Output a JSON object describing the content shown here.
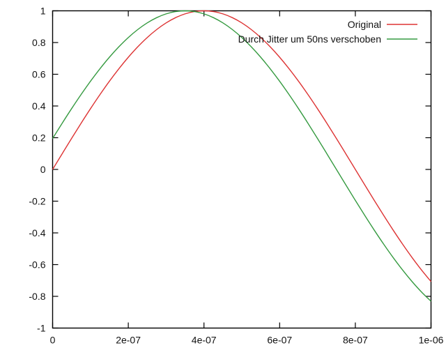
{
  "chart_data": {
    "type": "line",
    "title": "",
    "xlabel": "",
    "ylabel": "",
    "grid": false,
    "background_color": "#ffffff",
    "axis_color": "#000000",
    "legend_position": "top-right-inside",
    "x_range": [
      0,
      1e-06
    ],
    "y_range": [
      -1,
      1
    ],
    "x_ticks": {
      "values": [
        0,
        2e-07,
        4e-07,
        6e-07,
        8e-07,
        1e-06
      ],
      "labels": [
        "0",
        "2e-07",
        "4e-07",
        "6e-07",
        "8e-07",
        "1e-06"
      ]
    },
    "y_ticks": {
      "values": [
        -1,
        -0.8,
        -0.6,
        -0.4,
        -0.2,
        0,
        0.2,
        0.4,
        0.6,
        0.8,
        1
      ],
      "labels": [
        "-1",
        "-0.8",
        "-0.6",
        "-0.4",
        "-0.2",
        "0",
        "0.2",
        "0.4",
        "0.6",
        "0.8",
        "1"
      ]
    },
    "x_sample_start": 0,
    "x_sample_step": 2.5e-08,
    "series": [
      {
        "name": "Original",
        "color": "#dd3333",
        "values": [
          0.0,
          0.098,
          0.1951,
          0.2903,
          0.3827,
          0.4714,
          0.5556,
          0.6344,
          0.7071,
          0.773,
          0.8315,
          0.8819,
          0.9239,
          0.9569,
          0.9808,
          0.9952,
          1.0,
          0.9952,
          0.9808,
          0.9569,
          0.9239,
          0.8819,
          0.8315,
          0.773,
          0.7071,
          0.6344,
          0.5556,
          0.4714,
          0.3827,
          0.2903,
          0.1951,
          0.098,
          0.0,
          -0.098,
          -0.1951,
          -0.2903,
          -0.3827,
          -0.4714,
          -0.5556,
          -0.6344,
          -0.7071
        ]
      },
      {
        "name": "Durch Jitter um 50ns verschoben",
        "color": "#359a40",
        "values": [
          0.1951,
          0.2903,
          0.3827,
          0.4714,
          0.5556,
          0.6344,
          0.7071,
          0.773,
          0.8315,
          0.8819,
          0.9239,
          0.9569,
          0.9808,
          0.9952,
          1.0,
          0.9952,
          0.9808,
          0.9569,
          0.9239,
          0.8819,
          0.8315,
          0.773,
          0.7071,
          0.6344,
          0.5556,
          0.4714,
          0.3827,
          0.2903,
          0.1951,
          0.098,
          0.0,
          -0.098,
          -0.1951,
          -0.2903,
          -0.3827,
          -0.4714,
          -0.5556,
          -0.6344,
          -0.7071,
          -0.773,
          -0.8315
        ]
      }
    ]
  }
}
